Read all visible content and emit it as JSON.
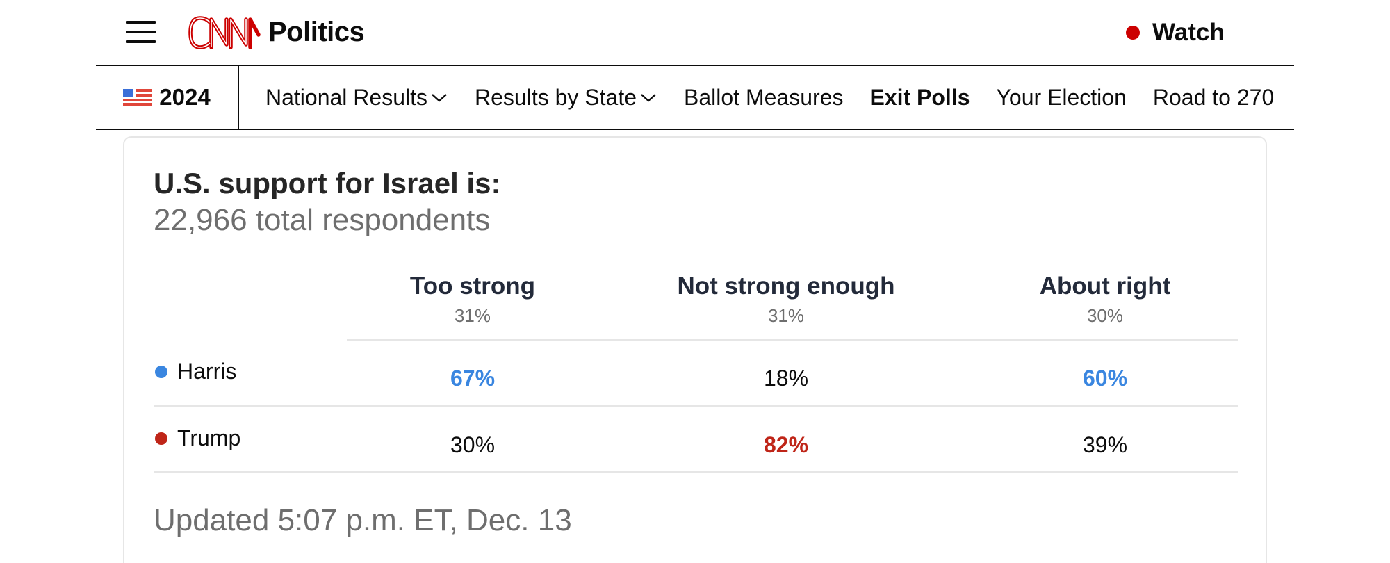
{
  "header": {
    "brand": "CNN",
    "section": "Politics",
    "watch_label": "Watch",
    "colors": {
      "brand_red": "#cc0000",
      "text": "#0c0c0c"
    }
  },
  "subnav": {
    "year": "2024",
    "items": [
      {
        "label": "National Results",
        "has_dropdown": true,
        "bold": false
      },
      {
        "label": "Results by State",
        "has_dropdown": true,
        "bold": false
      },
      {
        "label": "Ballot Measures",
        "has_dropdown": false,
        "bold": false
      },
      {
        "label": "Exit Polls",
        "has_dropdown": false,
        "bold": true
      },
      {
        "label": "Your Election",
        "has_dropdown": false,
        "bold": false
      },
      {
        "label": "Road to 270",
        "has_dropdown": false,
        "bold": false
      }
    ]
  },
  "poll": {
    "question": "U.S. support for Israel is:",
    "respondents": "22,966 total respondents",
    "columns": [
      {
        "name": "Too strong",
        "share": "31%"
      },
      {
        "name": "Not strong enough",
        "share": "31%"
      },
      {
        "name": "About right",
        "share": "30%"
      }
    ],
    "rows": [
      {
        "candidate": "Harris",
        "color": "#3a86e0",
        "values": [
          "67%",
          "18%",
          "60%"
        ]
      },
      {
        "candidate": "Trump",
        "color": "#bf2518",
        "values": [
          "30%",
          "82%",
          "39%"
        ]
      }
    ],
    "updated": "Updated 5:07 p.m. ET, Dec. 13"
  }
}
